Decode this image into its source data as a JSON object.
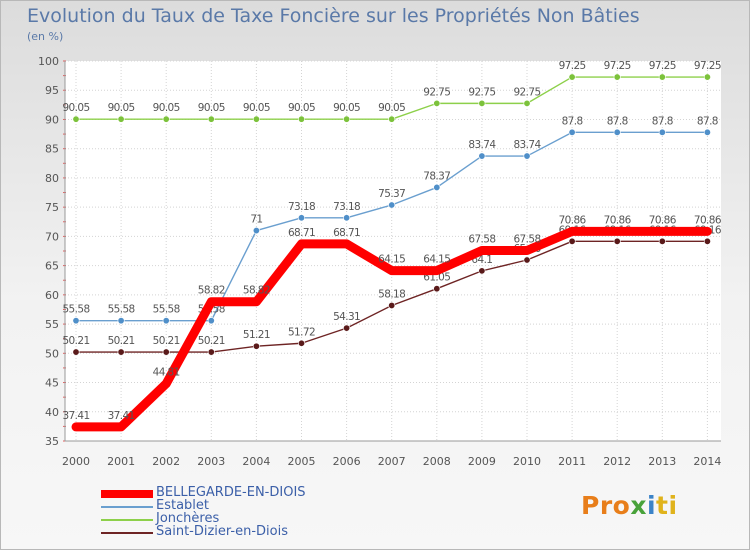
{
  "title": "Evolution du Taux de Taxe Foncière sur les Propriétés Non Bâties",
  "subtitle": "(en %)",
  "logo": {
    "text": "Proxiti",
    "parts": [
      "Pro",
      "x",
      "i",
      "ti"
    ]
  },
  "chart_data": {
    "type": "line",
    "title": "Evolution du Taux de Taxe Foncière sur les Propriétés Non Bâties",
    "ylabel": "(en %)",
    "xlabel": "",
    "ylim": [
      35,
      100
    ],
    "yticks": [
      35,
      40,
      45,
      50,
      55,
      60,
      65,
      70,
      75,
      80,
      85,
      90,
      95,
      100
    ],
    "categories": [
      "2000",
      "2001",
      "2002",
      "2003",
      "2004",
      "2005",
      "2006",
      "2007",
      "2008",
      "2009",
      "2010",
      "2011",
      "2012",
      "2013",
      "2014"
    ],
    "grid": true,
    "legend_position": "bottom-left",
    "series": [
      {
        "name": "Saint-Dizier-en-Diois",
        "color": "#6e2424",
        "values": [
          50.21,
          50.21,
          50.21,
          50.21,
          51.21,
          51.72,
          54.31,
          58.18,
          61.05,
          64.1,
          65.96,
          69.16,
          69.16,
          69.16,
          69.16
        ],
        "labels": [
          "50.21",
          "50.21",
          "50.21",
          "50.21",
          "51.21",
          "51.72",
          "54.31",
          "58.18",
          "61.05",
          "64.1",
          "65.96",
          "69.16",
          "69.16",
          "69.16",
          "69.16"
        ]
      },
      {
        "name": "Jonchères",
        "color": "#8dd04a",
        "values": [
          90.05,
          90.05,
          90.05,
          90.05,
          90.05,
          90.05,
          90.05,
          90.05,
          92.75,
          92.75,
          92.75,
          97.25,
          97.25,
          97.25,
          97.25
        ],
        "labels": [
          "90.05",
          "90.05",
          "90.05",
          "90.05",
          "90.05",
          "90.05",
          "90.05",
          "90.05",
          "92.75",
          "92.75",
          "92.75",
          "97.25",
          "97.25",
          "97.25",
          "97.25"
        ]
      },
      {
        "name": "Establet",
        "color": "#6a9fcf",
        "values": [
          55.58,
          55.58,
          55.58,
          55.58,
          71,
          73.18,
          73.18,
          75.37,
          78.37,
          83.74,
          83.74,
          87.8,
          87.8,
          87.8,
          87.8
        ],
        "labels": [
          "55.58",
          "55.58",
          "55.58",
          "55.58",
          "71",
          "73.18",
          "73.18",
          "75.37",
          "78.37",
          "83.74",
          "83.74",
          "87.8",
          "87.8",
          "87.8",
          "87.8"
        ]
      },
      {
        "name": "BELLEGARDE-EN-DIOIS",
        "color": "#ff0000",
        "values": [
          37.41,
          37.41,
          44.81,
          58.82,
          58.82,
          68.71,
          68.71,
          64.15,
          64.15,
          67.58,
          67.58,
          70.86,
          70.86,
          70.86,
          70.86
        ],
        "labels": [
          "37.41",
          "37.41",
          "44.81",
          "58.82",
          "58.82",
          "68.71",
          "68.71",
          "64.15",
          "64.15",
          "67.58",
          "67.58",
          "70.86",
          "70.86",
          "70.86",
          "70.86"
        ]
      }
    ]
  },
  "legend": [
    {
      "name": "BELLEGARDE-EN-DIOIS",
      "color": "#ff0000",
      "weight": 8
    },
    {
      "name": "Establet",
      "color": "#6a9fcf",
      "weight": 2
    },
    {
      "name": "Jonchères",
      "color": "#8dd04a",
      "weight": 2
    },
    {
      "name": "Saint-Dizier-en-Diois",
      "color": "#6e2424",
      "weight": 2
    }
  ]
}
